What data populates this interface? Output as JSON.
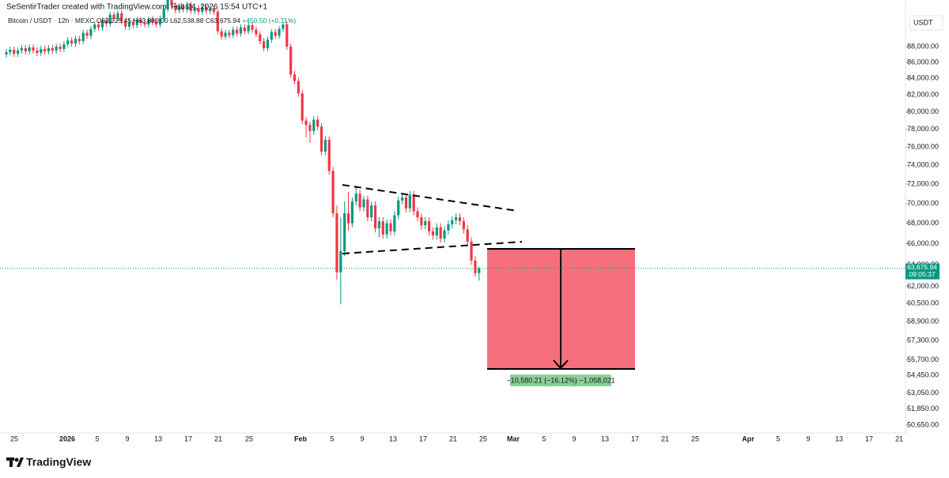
{
  "header": {
    "created": "SeSentirTrader created with TradingView.com, Feb 24, 2026 15:54 UTC+1"
  },
  "chart_data": {
    "type": "candlestick",
    "legend": {
      "symbol": "Bitcoin / USDT · 12h · MEXC",
      "open": "O63,225.45",
      "high": "H63,830.00",
      "low": "L62,538.88",
      "close": "C63,675.94",
      "change": "+450.50 (+0.71%)"
    },
    "currency": "USDT",
    "log_scale": true,
    "colors": {
      "up": "#089981",
      "down": "#f23645"
    },
    "open": [
      87000,
      87300,
      87600,
      87100,
      87500,
      87800,
      87400,
      87900,
      87500,
      87200,
      87700,
      87400,
      87800,
      87500,
      88000,
      87700,
      88300,
      88800,
      88400,
      89000,
      88700,
      89800,
      89400,
      90300,
      90900,
      90500,
      91400,
      91000,
      92200,
      91700,
      92400,
      91300,
      90600,
      91200,
      90800,
      91500,
      91100,
      90900,
      91600,
      91200,
      90900,
      91700,
      93000,
      94200,
      93500,
      92800,
      93300,
      92900,
      93600,
      92700,
      93100,
      92600,
      93200,
      92700,
      93000,
      92600,
      90000,
      89300,
      89800,
      89500,
      90200,
      89700,
      90500,
      90000,
      90800,
      90200,
      89600,
      88700,
      87800,
      88900,
      89900,
      89400,
      90300,
      90900,
      88000,
      84500,
      83700,
      82200,
      79000,
      78500,
      77800,
      79100,
      78300,
      75500,
      76800,
      73400,
      69000,
      63300,
      65300,
      69000,
      68000,
      70200,
      71000,
      69600,
      70400,
      68600,
      69800,
      67500,
      68200,
      66900,
      68000,
      67200,
      68800,
      70300,
      70600,
      69500,
      70900,
      69200,
      68600,
      67800,
      68200,
      67200,
      66800,
      67600,
      66500,
      67300,
      67900,
      68300,
      68600,
      68200,
      67400,
      66200,
      64400,
      63225.45
    ],
    "high": [
      87700,
      88000,
      88000,
      87900,
      88200,
      88200,
      88300,
      88300,
      87900,
      88100,
      88100,
      88200,
      88200,
      88400,
      88400,
      88700,
      89200,
      89200,
      89400,
      89400,
      90200,
      90200,
      90700,
      91300,
      91300,
      91800,
      91800,
      92600,
      92600,
      92800,
      92800,
      91700,
      91600,
      91600,
      91900,
      91900,
      91500,
      92000,
      92000,
      91600,
      92100,
      93400,
      94600,
      94600,
      93900,
      93700,
      93700,
      94000,
      94000,
      93500,
      93500,
      93600,
      93600,
      93400,
      93400,
      93000,
      90400,
      90200,
      90200,
      90600,
      90600,
      90900,
      90900,
      91200,
      91200,
      90600,
      90000,
      89100,
      89300,
      90300,
      90300,
      90700,
      91300,
      91300,
      88400,
      84900,
      84100,
      82600,
      79400,
      78900,
      79500,
      79500,
      78700,
      77200,
      77200,
      73800,
      69800,
      68600,
      70200,
      71200,
      70600,
      71800,
      71400,
      70800,
      70800,
      70200,
      70200,
      68600,
      68600,
      68400,
      68400,
      69200,
      70700,
      71000,
      71000,
      71300,
      71300,
      69600,
      69000,
      68600,
      68600,
      67600,
      68000,
      68000,
      67700,
      68300,
      68700,
      69000,
      69000,
      68600,
      67800,
      66600,
      64800,
      63830
    ],
    "low": [
      86600,
      86900,
      86700,
      86700,
      87100,
      87000,
      87000,
      87100,
      86800,
      86800,
      87000,
      87000,
      87100,
      87100,
      87300,
      87300,
      87900,
      88000,
      88000,
      88300,
      88300,
      89000,
      89000,
      89900,
      90100,
      90100,
      90600,
      90600,
      91300,
      91300,
      90900,
      90200,
      90200,
      90400,
      90400,
      90700,
      90500,
      90500,
      90800,
      90500,
      90500,
      91300,
      92600,
      93100,
      92400,
      92400,
      92500,
      92500,
      92300,
      92300,
      92200,
      92200,
      92300,
      92300,
      92200,
      89600,
      88900,
      88900,
      89100,
      89100,
      89300,
      89300,
      89600,
      89600,
      89800,
      89200,
      88300,
      87400,
      87400,
      88500,
      89000,
      89000,
      89900,
      87600,
      84100,
      83300,
      81800,
      78600,
      77100,
      76500,
      77400,
      77900,
      75100,
      75100,
      73000,
      68600,
      62600,
      60400,
      64800,
      67300,
      67600,
      69800,
      69200,
      69200,
      68200,
      68200,
      67100,
      66600,
      66500,
      66500,
      66800,
      66800,
      68400,
      69900,
      69100,
      69100,
      68800,
      68200,
      67400,
      67400,
      66800,
      66400,
      66400,
      66100,
      66100,
      66900,
      67500,
      67900,
      67800,
      67000,
      65800,
      64000,
      62900,
      62538.88
    ],
    "close": [
      87300,
      87600,
      87100,
      87500,
      87800,
      87400,
      87900,
      87500,
      87200,
      87700,
      87400,
      87800,
      87500,
      88000,
      87700,
      88300,
      88800,
      88400,
      89000,
      88700,
      89800,
      89400,
      90300,
      90900,
      90500,
      91400,
      91000,
      92200,
      91700,
      92400,
      91300,
      90600,
      91200,
      90800,
      91500,
      91100,
      90900,
      91600,
      91200,
      90900,
      91700,
      93000,
      94200,
      93500,
      92800,
      93300,
      92900,
      93600,
      92700,
      93100,
      92600,
      93200,
      92700,
      93000,
      92600,
      90000,
      89300,
      89800,
      89500,
      90200,
      89700,
      90500,
      90000,
      90800,
      90200,
      89600,
      88700,
      87800,
      88900,
      89900,
      89400,
      90300,
      90900,
      88000,
      84500,
      83700,
      82200,
      79000,
      78500,
      77800,
      79100,
      78300,
      75500,
      76800,
      73400,
      69000,
      63300,
      65300,
      69000,
      68000,
      70200,
      71000,
      69600,
      70400,
      68600,
      69800,
      67500,
      68200,
      66900,
      68000,
      67200,
      68800,
      70300,
      70600,
      69500,
      70900,
      69200,
      68600,
      67800,
      68200,
      67200,
      66800,
      67600,
      66500,
      67300,
      67900,
      68300,
      68600,
      68200,
      67400,
      66200,
      64400,
      63225.45,
      63675.94
    ],
    "ylim": [
      50070,
      94200
    ],
    "yticks": [
      {
        "value": 88000,
        "label": "88,000.00"
      },
      {
        "value": 86000,
        "label": "86,000.00"
      },
      {
        "value": 84000,
        "label": "84,000.00"
      },
      {
        "value": 82000,
        "label": "82,000.00"
      },
      {
        "value": 80000,
        "label": "80,000.00"
      },
      {
        "value": 78000,
        "label": "78,000.00"
      },
      {
        "value": 76000,
        "label": "76,000.00"
      },
      {
        "value": 74000,
        "label": "74,000.00"
      },
      {
        "value": 72000,
        "label": "72,000.00"
      },
      {
        "value": 70000,
        "label": "70,000.00"
      },
      {
        "value": 68000,
        "label": "68,000.00"
      },
      {
        "value": 66000,
        "label": "66,000.00"
      },
      {
        "value": 64000,
        "label": "64,000.00"
      },
      {
        "value": 62000,
        "label": "62,000.00"
      },
      {
        "value": 60500,
        "label": "60,500.00"
      },
      {
        "value": 58900,
        "label": "58,900.00"
      },
      {
        "value": 57300,
        "label": "57,300.00"
      },
      {
        "value": 55700,
        "label": "55,700.00"
      },
      {
        "value": 54450,
        "label": "54,450.00"
      },
      {
        "value": 53050,
        "label": "53,050.00"
      },
      {
        "value": 51850,
        "label": "51,850.00"
      },
      {
        "value": 50650,
        "label": "50,650.00"
      }
    ],
    "x_axis_labels": [
      "25",
      "2026",
      "5",
      "9",
      "13",
      "17",
      "21",
      "25",
      "Feb",
      "5",
      "9",
      "13",
      "17",
      "21",
      "25",
      "Mar",
      "5",
      "9",
      "13",
      "17",
      "21",
      "25",
      "Apr",
      "5",
      "9",
      "13",
      "17",
      "21"
    ],
    "price_tag": {
      "value": "63,675.94",
      "timer": "09:05:37"
    },
    "measure_label": "−10,580.21 (−16.12%) −1,058,021"
  },
  "footer": {
    "logo": "TradingView"
  }
}
